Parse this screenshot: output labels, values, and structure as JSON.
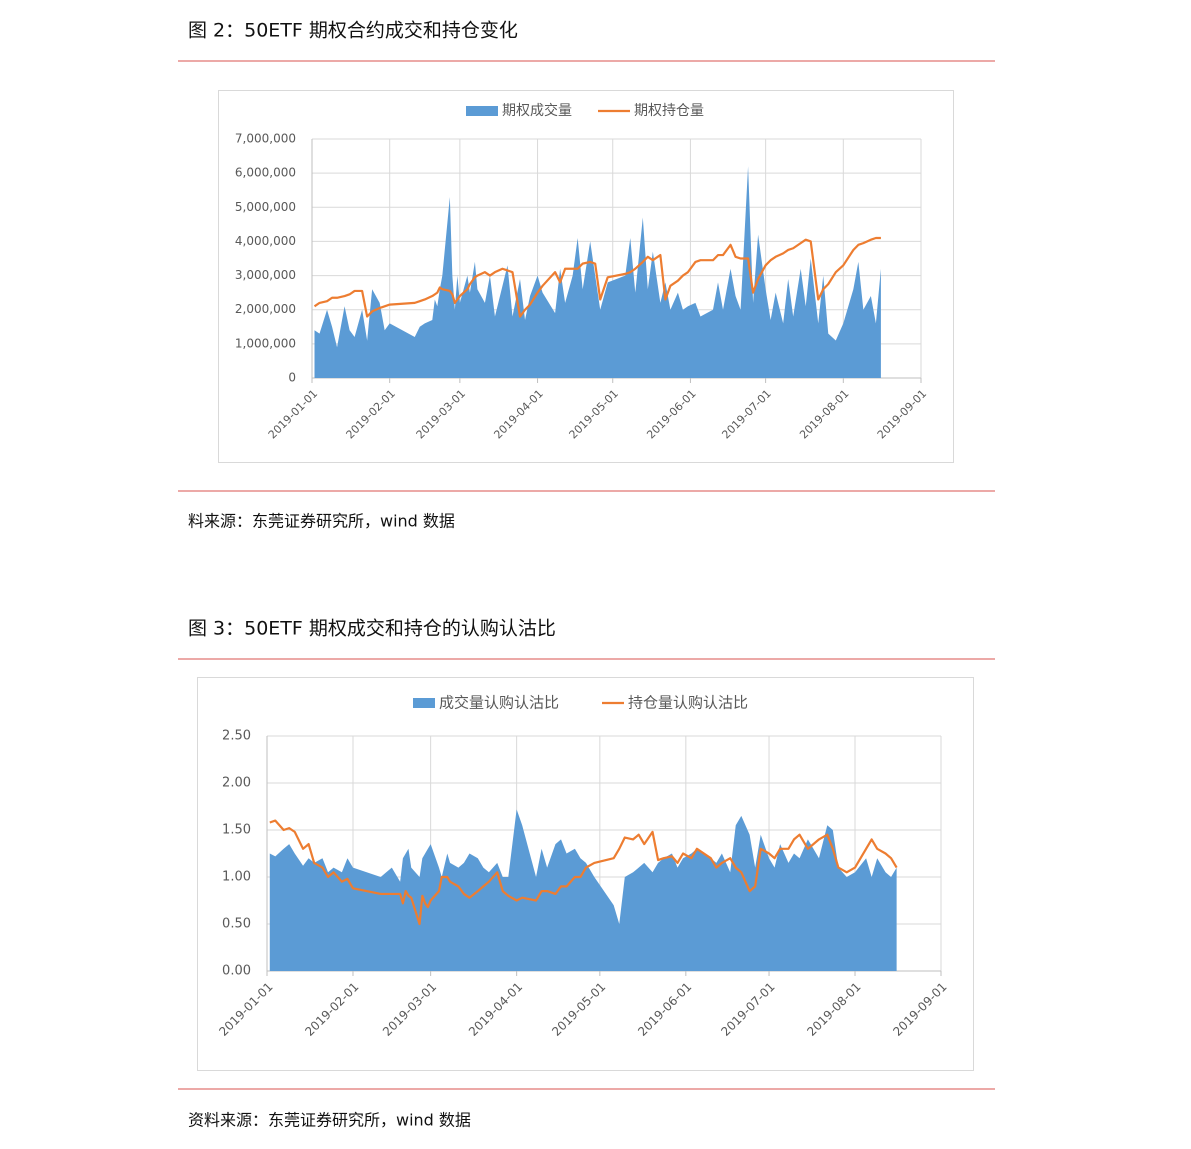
{
  "chart_data": [
    {
      "type": "combo",
      "title": "图 2：50ETF 期权合约成交和持仓变化",
      "source": "料来源：东莞证券研究所，wind 数据",
      "x": [
        "2019-01-02",
        "2019-01-04",
        "2019-01-07",
        "2019-01-09",
        "2019-01-11",
        "2019-01-14",
        "2019-01-16",
        "2019-01-18",
        "2019-01-21",
        "2019-01-23",
        "2019-01-25",
        "2019-01-28",
        "2019-01-30",
        "2019-02-01",
        "2019-02-11",
        "2019-02-13",
        "2019-02-15",
        "2019-02-18",
        "2019-02-19",
        "2019-02-20",
        "2019-02-21",
        "2019-02-22",
        "2019-02-25",
        "2019-02-26",
        "2019-02-27",
        "2019-02-28",
        "2019-03-01",
        "2019-03-04",
        "2019-03-05",
        "2019-03-07",
        "2019-03-08",
        "2019-03-11",
        "2019-03-13",
        "2019-03-15",
        "2019-03-18",
        "2019-03-20",
        "2019-03-22",
        "2019-03-25",
        "2019-03-27",
        "2019-03-29",
        "2019-04-01",
        "2019-04-03",
        "2019-04-08",
        "2019-04-10",
        "2019-04-12",
        "2019-04-15",
        "2019-04-17",
        "2019-04-19",
        "2019-04-22",
        "2019-04-24",
        "2019-04-26",
        "2019-04-29",
        "2019-05-06",
        "2019-05-08",
        "2019-05-10",
        "2019-05-13",
        "2019-05-15",
        "2019-05-17",
        "2019-05-20",
        "2019-05-22",
        "2019-05-24",
        "2019-05-27",
        "2019-05-29",
        "2019-05-31",
        "2019-06-03",
        "2019-06-05",
        "2019-06-10",
        "2019-06-12",
        "2019-06-14",
        "2019-06-17",
        "2019-06-19",
        "2019-06-21",
        "2019-06-24",
        "2019-06-26",
        "2019-06-28",
        "2019-07-01",
        "2019-07-03",
        "2019-07-05",
        "2019-07-08",
        "2019-07-10",
        "2019-07-12",
        "2019-07-15",
        "2019-07-17",
        "2019-07-19",
        "2019-07-22",
        "2019-07-24",
        "2019-07-26",
        "2019-07-29",
        "2019-08-01",
        "2019-08-05",
        "2019-08-07",
        "2019-08-09",
        "2019-08-12",
        "2019-08-14",
        "2019-08-16"
      ],
      "series": [
        {
          "name": "期权成交量",
          "type": "area",
          "color": "#5b9bd5",
          "values": [
            1400000,
            1300000,
            2000000,
            1500000,
            900000,
            2100000,
            1400000,
            1200000,
            2000000,
            1100000,
            2600000,
            2200000,
            1400000,
            1600000,
            1200000,
            1500000,
            1600000,
            1700000,
            2300000,
            2100000,
            2600000,
            3000000,
            5300000,
            3000000,
            2000000,
            3000000,
            2200000,
            3000000,
            2500000,
            3400000,
            2600000,
            2200000,
            3000000,
            1800000,
            2700000,
            3300000,
            1800000,
            2900000,
            1700000,
            2400000,
            3000000,
            2500000,
            1900000,
            3200000,
            2200000,
            3000000,
            4100000,
            2600000,
            4000000,
            3000000,
            2000000,
            2800000,
            3000000,
            4100000,
            2500000,
            4700000,
            2600000,
            3700000,
            2200000,
            2800000,
            2000000,
            2500000,
            2000000,
            2100000,
            2200000,
            1800000,
            2000000,
            2800000,
            2000000,
            3200000,
            2400000,
            2000000,
            6200000,
            2200000,
            4200000,
            2600000,
            1700000,
            2500000,
            1600000,
            2900000,
            1800000,
            3200000,
            2100000,
            3500000,
            1600000,
            3000000,
            1300000,
            1100000,
            1600000,
            2600000,
            3400000,
            2000000,
            2400000,
            1600000,
            3200000
          ]
        },
        {
          "name": "期权持仓量",
          "type": "line",
          "color": "#ed7d31",
          "values": [
            2100000,
            2200000,
            2250000,
            2350000,
            2350000,
            2400000,
            2450000,
            2550000,
            2550000,
            1800000,
            1950000,
            2050000,
            2100000,
            2150000,
            2200000,
            2250000,
            2300000,
            2400000,
            2450000,
            2500000,
            2650000,
            2600000,
            2550000,
            2450000,
            2200000,
            2300000,
            2400000,
            2600000,
            2750000,
            2950000,
            3000000,
            3100000,
            3000000,
            3100000,
            3200000,
            3150000,
            3100000,
            1800000,
            2000000,
            2150000,
            2500000,
            2700000,
            3100000,
            2800000,
            3200000,
            3200000,
            3200000,
            3350000,
            3400000,
            3350000,
            2300000,
            2950000,
            3050000,
            3100000,
            3200000,
            3400000,
            3550000,
            3450000,
            3600000,
            2300000,
            2700000,
            2850000,
            3000000,
            3100000,
            3400000,
            3450000,
            3450000,
            3600000,
            3600000,
            3900000,
            3550000,
            3500000,
            3500000,
            2500000,
            2900000,
            3300000,
            3450000,
            3550000,
            3650000,
            3750000,
            3800000,
            3950000,
            4050000,
            4000000,
            2300000,
            2600000,
            2750000,
            3100000,
            3300000,
            3750000,
            3900000,
            3950000,
            4050000,
            4100000,
            4100000
          ]
        }
      ],
      "xlim": [
        "2019-01-01",
        "2019-09-01"
      ],
      "xticks": [
        "2019-01-01",
        "2019-02-01",
        "2019-03-01",
        "2019-04-01",
        "2019-05-01",
        "2019-06-01",
        "2019-07-01",
        "2019-08-01",
        "2019-09-01"
      ],
      "ylim": [
        0,
        7000000
      ],
      "yticks": [
        0,
        {
          "value": 1000000,
          "label": "1,000,000"
        },
        {
          "value": 2000000,
          "label": "2,000,000"
        },
        {
          "value": 3000000,
          "label": "3,000,000"
        },
        {
          "value": 4000000,
          "label": "4,000,000"
        },
        {
          "value": 5000000,
          "label": "5,000,000"
        },
        {
          "value": 6000000,
          "label": "6,000,000"
        },
        {
          "value": 7000000,
          "label": "7,000,000"
        }
      ],
      "grid": true,
      "legend": "top"
    },
    {
      "type": "combo",
      "title": "图 3：50ETF 期权成交和持仓的认购认沽比",
      "source": "资料来源：东莞证券研究所，wind 数据",
      "x": [
        "2019-01-02",
        "2019-01-04",
        "2019-01-07",
        "2019-01-09",
        "2019-01-11",
        "2019-01-14",
        "2019-01-16",
        "2019-01-18",
        "2019-01-21",
        "2019-01-23",
        "2019-01-25",
        "2019-01-28",
        "2019-01-30",
        "2019-02-01",
        "2019-02-11",
        "2019-02-13",
        "2019-02-15",
        "2019-02-18",
        "2019-02-19",
        "2019-02-20",
        "2019-02-21",
        "2019-02-22",
        "2019-02-25",
        "2019-02-26",
        "2019-02-27",
        "2019-02-28",
        "2019-03-01",
        "2019-03-04",
        "2019-03-05",
        "2019-03-07",
        "2019-03-08",
        "2019-03-11",
        "2019-03-13",
        "2019-03-15",
        "2019-03-18",
        "2019-03-20",
        "2019-03-22",
        "2019-03-25",
        "2019-03-27",
        "2019-03-29",
        "2019-04-01",
        "2019-04-03",
        "2019-04-08",
        "2019-04-10",
        "2019-04-12",
        "2019-04-15",
        "2019-04-17",
        "2019-04-19",
        "2019-04-22",
        "2019-04-24",
        "2019-04-26",
        "2019-04-29",
        "2019-05-06",
        "2019-05-08",
        "2019-05-10",
        "2019-05-13",
        "2019-05-15",
        "2019-05-17",
        "2019-05-20",
        "2019-05-22",
        "2019-05-24",
        "2019-05-27",
        "2019-05-29",
        "2019-05-31",
        "2019-06-03",
        "2019-06-05",
        "2019-06-10",
        "2019-06-12",
        "2019-06-14",
        "2019-06-17",
        "2019-06-19",
        "2019-06-21",
        "2019-06-24",
        "2019-06-26",
        "2019-06-28",
        "2019-07-01",
        "2019-07-03",
        "2019-07-05",
        "2019-07-08",
        "2019-07-10",
        "2019-07-12",
        "2019-07-15",
        "2019-07-17",
        "2019-07-19",
        "2019-07-22",
        "2019-07-24",
        "2019-07-26",
        "2019-07-29",
        "2019-08-01",
        "2019-08-05",
        "2019-08-07",
        "2019-08-09",
        "2019-08-12",
        "2019-08-14",
        "2019-08-16"
      ],
      "series": [
        {
          "name": "成交量认购认沽比",
          "type": "area",
          "color": "#5b9bd5",
          "values": [
            1.25,
            1.22,
            1.3,
            1.35,
            1.25,
            1.12,
            1.2,
            1.15,
            1.2,
            1.05,
            1.1,
            1.05,
            1.2,
            1.1,
            1.0,
            1.05,
            1.1,
            0.95,
            1.2,
            1.25,
            1.3,
            1.1,
            1.0,
            1.2,
            1.25,
            1.3,
            1.35,
            1.1,
            1.0,
            1.25,
            1.15,
            1.1,
            1.15,
            1.25,
            1.2,
            1.1,
            1.05,
            1.15,
            1.0,
            1.0,
            1.72,
            1.55,
            1.0,
            1.3,
            1.1,
            1.35,
            1.4,
            1.25,
            1.3,
            1.2,
            1.15,
            1.0,
            0.7,
            0.5,
            1.0,
            1.05,
            1.1,
            1.15,
            1.05,
            1.15,
            1.2,
            1.25,
            1.1,
            1.2,
            1.25,
            1.3,
            1.2,
            1.15,
            1.25,
            1.05,
            1.55,
            1.65,
            1.45,
            1.1,
            1.45,
            1.2,
            1.1,
            1.35,
            1.15,
            1.25,
            1.2,
            1.4,
            1.3,
            1.2,
            1.55,
            1.5,
            1.1,
            1.0,
            1.05,
            1.2,
            1.0,
            1.2,
            1.05,
            1.0,
            1.1
          ]
        },
        {
          "name": "持仓量认购认沽比",
          "type": "line",
          "color": "#ed7d31",
          "values": [
            1.58,
            1.6,
            1.5,
            1.52,
            1.48,
            1.3,
            1.35,
            1.15,
            1.1,
            1.0,
            1.05,
            0.95,
            0.98,
            0.88,
            0.82,
            0.82,
            0.82,
            0.82,
            0.72,
            0.85,
            0.8,
            0.78,
            0.5,
            0.8,
            0.72,
            0.68,
            0.75,
            0.85,
            1.0,
            1.0,
            0.95,
            0.9,
            0.82,
            0.78,
            0.85,
            0.9,
            0.95,
            1.05,
            0.85,
            0.8,
            0.75,
            0.78,
            0.75,
            0.85,
            0.85,
            0.82,
            0.9,
            0.9,
            1.0,
            1.0,
            1.1,
            1.15,
            1.2,
            1.3,
            1.42,
            1.4,
            1.45,
            1.35,
            1.48,
            1.18,
            1.2,
            1.22,
            1.15,
            1.25,
            1.2,
            1.3,
            1.2,
            1.1,
            1.15,
            1.2,
            1.1,
            1.05,
            0.85,
            0.9,
            1.3,
            1.25,
            1.2,
            1.3,
            1.3,
            1.4,
            1.45,
            1.3,
            1.35,
            1.4,
            1.45,
            1.3,
            1.1,
            1.05,
            1.1,
            1.3,
            1.4,
            1.3,
            1.25,
            1.2,
            1.1
          ]
        }
      ],
      "xlim": [
        "2019-01-01",
        "2019-09-01"
      ],
      "xticks": [
        "2019-01-01",
        "2019-02-01",
        "2019-03-01",
        "2019-04-01",
        "2019-05-01",
        "2019-06-01",
        "2019-07-01",
        "2019-08-01",
        "2019-09-01"
      ],
      "ylim": [
        0,
        2.5
      ],
      "yticks": [
        {
          "value": 0,
          "label": "0.00"
        },
        {
          "value": 0.5,
          "label": "0.50"
        },
        {
          "value": 1,
          "label": "1.00"
        },
        {
          "value": 1.5,
          "label": "1.50"
        },
        {
          "value": 2,
          "label": "2.00"
        },
        {
          "value": 2.5,
          "label": "2.50"
        }
      ],
      "grid": true,
      "legend": "top"
    }
  ]
}
